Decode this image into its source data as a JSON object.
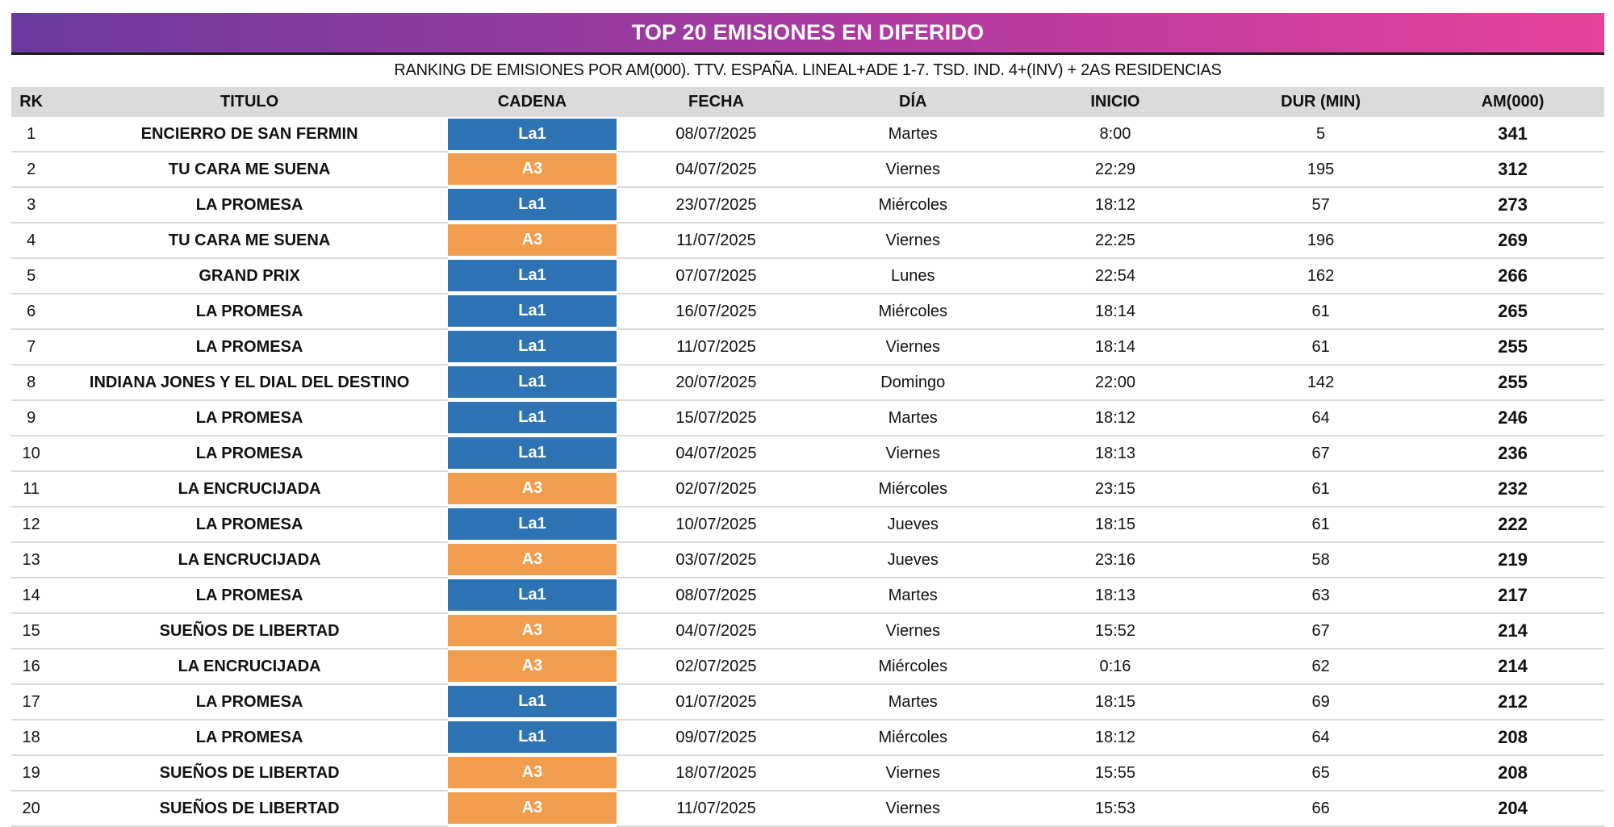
{
  "banner": {
    "title": "TOP 20 EMISIONES EN DIFERIDO",
    "gradient_left": "#6B3A9E",
    "gradient_right": "#E8429B",
    "border_color": "#1A1A1A",
    "title_color": "#FFFFFF"
  },
  "subtitle": "RANKING DE EMISIONES POR AM(000). TTV. ESPAÑA. LINEAL+ADE 1-7. TSD. IND. 4+(INV) + 2AS RESIDENCIAS",
  "colors": {
    "header_bg": "#DBDBDB",
    "row_border": "#D9D9D9",
    "channels": {
      "La1": "#2E74B5",
      "A3": "#F09D4E"
    },
    "channel_text": "#FFFFFF"
  },
  "chart_data": {
    "type": "table",
    "title": "TOP 20 EMISIONES EN DIFERIDO",
    "subtitle": "RANKING DE EMISIONES POR AM(000). TTV. ESPAÑA. LINEAL+ADE 1-7. TSD. IND. 4+(INV) + 2AS RESIDENCIAS",
    "columns": [
      {
        "key": "rk",
        "label": "RK"
      },
      {
        "key": "titulo",
        "label": "TITULO"
      },
      {
        "key": "cadena",
        "label": "CADENA"
      },
      {
        "key": "fecha",
        "label": "FECHA"
      },
      {
        "key": "dia",
        "label": "DÍA"
      },
      {
        "key": "inicio",
        "label": "INICIO"
      },
      {
        "key": "dur",
        "label": "DUR (MIN)"
      },
      {
        "key": "am",
        "label": "AM(000)"
      }
    ],
    "rows": [
      [
        1,
        "ENCIERRO DE SAN FERMIN",
        "La1",
        "08/07/2025",
        "Martes",
        "8:00",
        5,
        341
      ],
      [
        2,
        "TU CARA ME SUENA",
        "A3",
        "04/07/2025",
        "Viernes",
        "22:29",
        195,
        312
      ],
      [
        3,
        "LA PROMESA",
        "La1",
        "23/07/2025",
        "Miércoles",
        "18:12",
        57,
        273
      ],
      [
        4,
        "TU CARA ME SUENA",
        "A3",
        "11/07/2025",
        "Viernes",
        "22:25",
        196,
        269
      ],
      [
        5,
        "GRAND PRIX",
        "La1",
        "07/07/2025",
        "Lunes",
        "22:54",
        162,
        266
      ],
      [
        6,
        "LA PROMESA",
        "La1",
        "16/07/2025",
        "Miércoles",
        "18:14",
        61,
        265
      ],
      [
        7,
        "LA PROMESA",
        "La1",
        "11/07/2025",
        "Viernes",
        "18:14",
        61,
        255
      ],
      [
        8,
        "INDIANA JONES Y EL DIAL DEL DESTINO",
        "La1",
        "20/07/2025",
        "Domingo",
        "22:00",
        142,
        255
      ],
      [
        9,
        "LA PROMESA",
        "La1",
        "15/07/2025",
        "Martes",
        "18:12",
        64,
        246
      ],
      [
        10,
        "LA PROMESA",
        "La1",
        "04/07/2025",
        "Viernes",
        "18:13",
        67,
        236
      ],
      [
        11,
        "LA ENCRUCIJADA",
        "A3",
        "02/07/2025",
        "Miércoles",
        "23:15",
        61,
        232
      ],
      [
        12,
        "LA PROMESA",
        "La1",
        "10/07/2025",
        "Jueves",
        "18:15",
        61,
        222
      ],
      [
        13,
        "LA ENCRUCIJADA",
        "A3",
        "03/07/2025",
        "Jueves",
        "23:16",
        58,
        219
      ],
      [
        14,
        "LA PROMESA",
        "La1",
        "08/07/2025",
        "Martes",
        "18:13",
        63,
        217
      ],
      [
        15,
        "SUEÑOS DE LIBERTAD",
        "A3",
        "04/07/2025",
        "Viernes",
        "15:52",
        67,
        214
      ],
      [
        16,
        "LA ENCRUCIJADA",
        "A3",
        "02/07/2025",
        "Miércoles",
        "0:16",
        62,
        214
      ],
      [
        17,
        "LA PROMESA",
        "La1",
        "01/07/2025",
        "Martes",
        "18:15",
        69,
        212
      ],
      [
        18,
        "LA PROMESA",
        "La1",
        "09/07/2025",
        "Miércoles",
        "18:12",
        64,
        208
      ],
      [
        19,
        "SUEÑOS DE LIBERTAD",
        "A3",
        "18/07/2025",
        "Viernes",
        "15:55",
        65,
        208
      ],
      [
        20,
        "SUEÑOS DE LIBERTAD",
        "A3",
        "11/07/2025",
        "Viernes",
        "15:53",
        66,
        204
      ]
    ]
  }
}
